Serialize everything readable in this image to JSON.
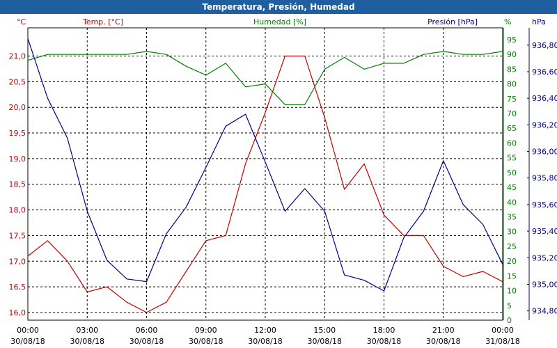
{
  "title": "Temperatura, Presión, Humedad",
  "colors": {
    "title_bg": "#1f5fa0",
    "temp": "#c00000",
    "hum": "#008000",
    "pres": "#00008b",
    "grid": "#000000"
  },
  "chart_data": {
    "type": "line",
    "title": "Temperatura, Presión, Humedad",
    "grid": true,
    "x": [
      "00:00 30/08/18",
      "01:00",
      "02:00",
      "03:00 30/08/18",
      "04:00",
      "05:00",
      "06:00 30/08/18",
      "07:00",
      "08:00",
      "09:00 30/08/18",
      "10:00",
      "11:00",
      "12:00 30/08/18",
      "13:00",
      "14:00",
      "15:00 30/08/18",
      "16:00",
      "17:00",
      "18:00 30/08/18",
      "19:00",
      "20:00",
      "21:00 30/08/18",
      "22:00",
      "23:00",
      "00:00 31/08/18"
    ],
    "x_ticks": [
      {
        "time": "00:00",
        "date": "30/08/18"
      },
      {
        "time": "03:00",
        "date": "30/08/18"
      },
      {
        "time": "06:00",
        "date": "30/08/18"
      },
      {
        "time": "09:00",
        "date": "30/08/18"
      },
      {
        "time": "12:00",
        "date": "30/08/18"
      },
      {
        "time": "15:00",
        "date": "30/08/18"
      },
      {
        "time": "18:00",
        "date": "30/08/18"
      },
      {
        "time": "21:00",
        "date": "30/08/18"
      },
      {
        "time": "00:00",
        "date": "31/08/18"
      }
    ],
    "axes": {
      "temp": {
        "label": "Temp. [°C]",
        "unit": "°C",
        "range": [
          15.85,
          21.55
        ],
        "ticks": [
          "16,0",
          "16,5",
          "17,0",
          "17,5",
          "18,0",
          "18,5",
          "19,0",
          "19,5",
          "20,0",
          "20,5",
          "21,0"
        ]
      },
      "hum": {
        "label": "Humedad [%]",
        "unit": "%",
        "range": [
          0,
          99
        ],
        "ticks": [
          "0",
          "5",
          "10",
          "15",
          "20",
          "25",
          "30",
          "35",
          "40",
          "45",
          "50",
          "55",
          "60",
          "65",
          "70",
          "75",
          "80",
          "85",
          "90",
          "95"
        ]
      },
      "pres": {
        "label": "Presión [hPa]",
        "unit": "hPa",
        "range": [
          934.73,
          936.93
        ],
        "ticks": [
          "934,80",
          "935,00",
          "935,20",
          "935,40",
          "935,60",
          "935,80",
          "936,00",
          "936,20",
          "936,40",
          "936,60",
          "936,80"
        ]
      }
    },
    "series": [
      {
        "name": "Temp. [°C]",
        "axis": "temp",
        "values": [
          17.1,
          17.4,
          17.0,
          16.4,
          16.5,
          16.2,
          16.0,
          16.2,
          16.8,
          17.4,
          17.5,
          18.9,
          19.9,
          21.0,
          21.0,
          19.8,
          18.4,
          18.9,
          17.9,
          17.5,
          17.5,
          16.9,
          16.7,
          16.8,
          16.6
        ]
      },
      {
        "name": "Humedad [%]",
        "axis": "hum",
        "values": [
          88,
          90,
          90,
          90,
          90,
          90,
          91,
          90,
          86,
          83,
          87,
          79,
          80,
          73,
          73,
          85,
          89,
          85,
          87,
          87,
          90,
          91,
          90,
          90,
          91
        ]
      },
      {
        "name": "Presión [hPa]",
        "axis": "pres",
        "values": [
          936.85,
          936.4,
          936.1,
          935.55,
          935.18,
          935.04,
          935.02,
          935.38,
          935.58,
          935.88,
          936.19,
          936.28,
          935.92,
          935.55,
          935.72,
          935.55,
          935.07,
          935.03,
          934.95,
          935.35,
          935.55,
          935.93,
          935.6,
          935.45,
          935.15
        ]
      }
    ]
  }
}
